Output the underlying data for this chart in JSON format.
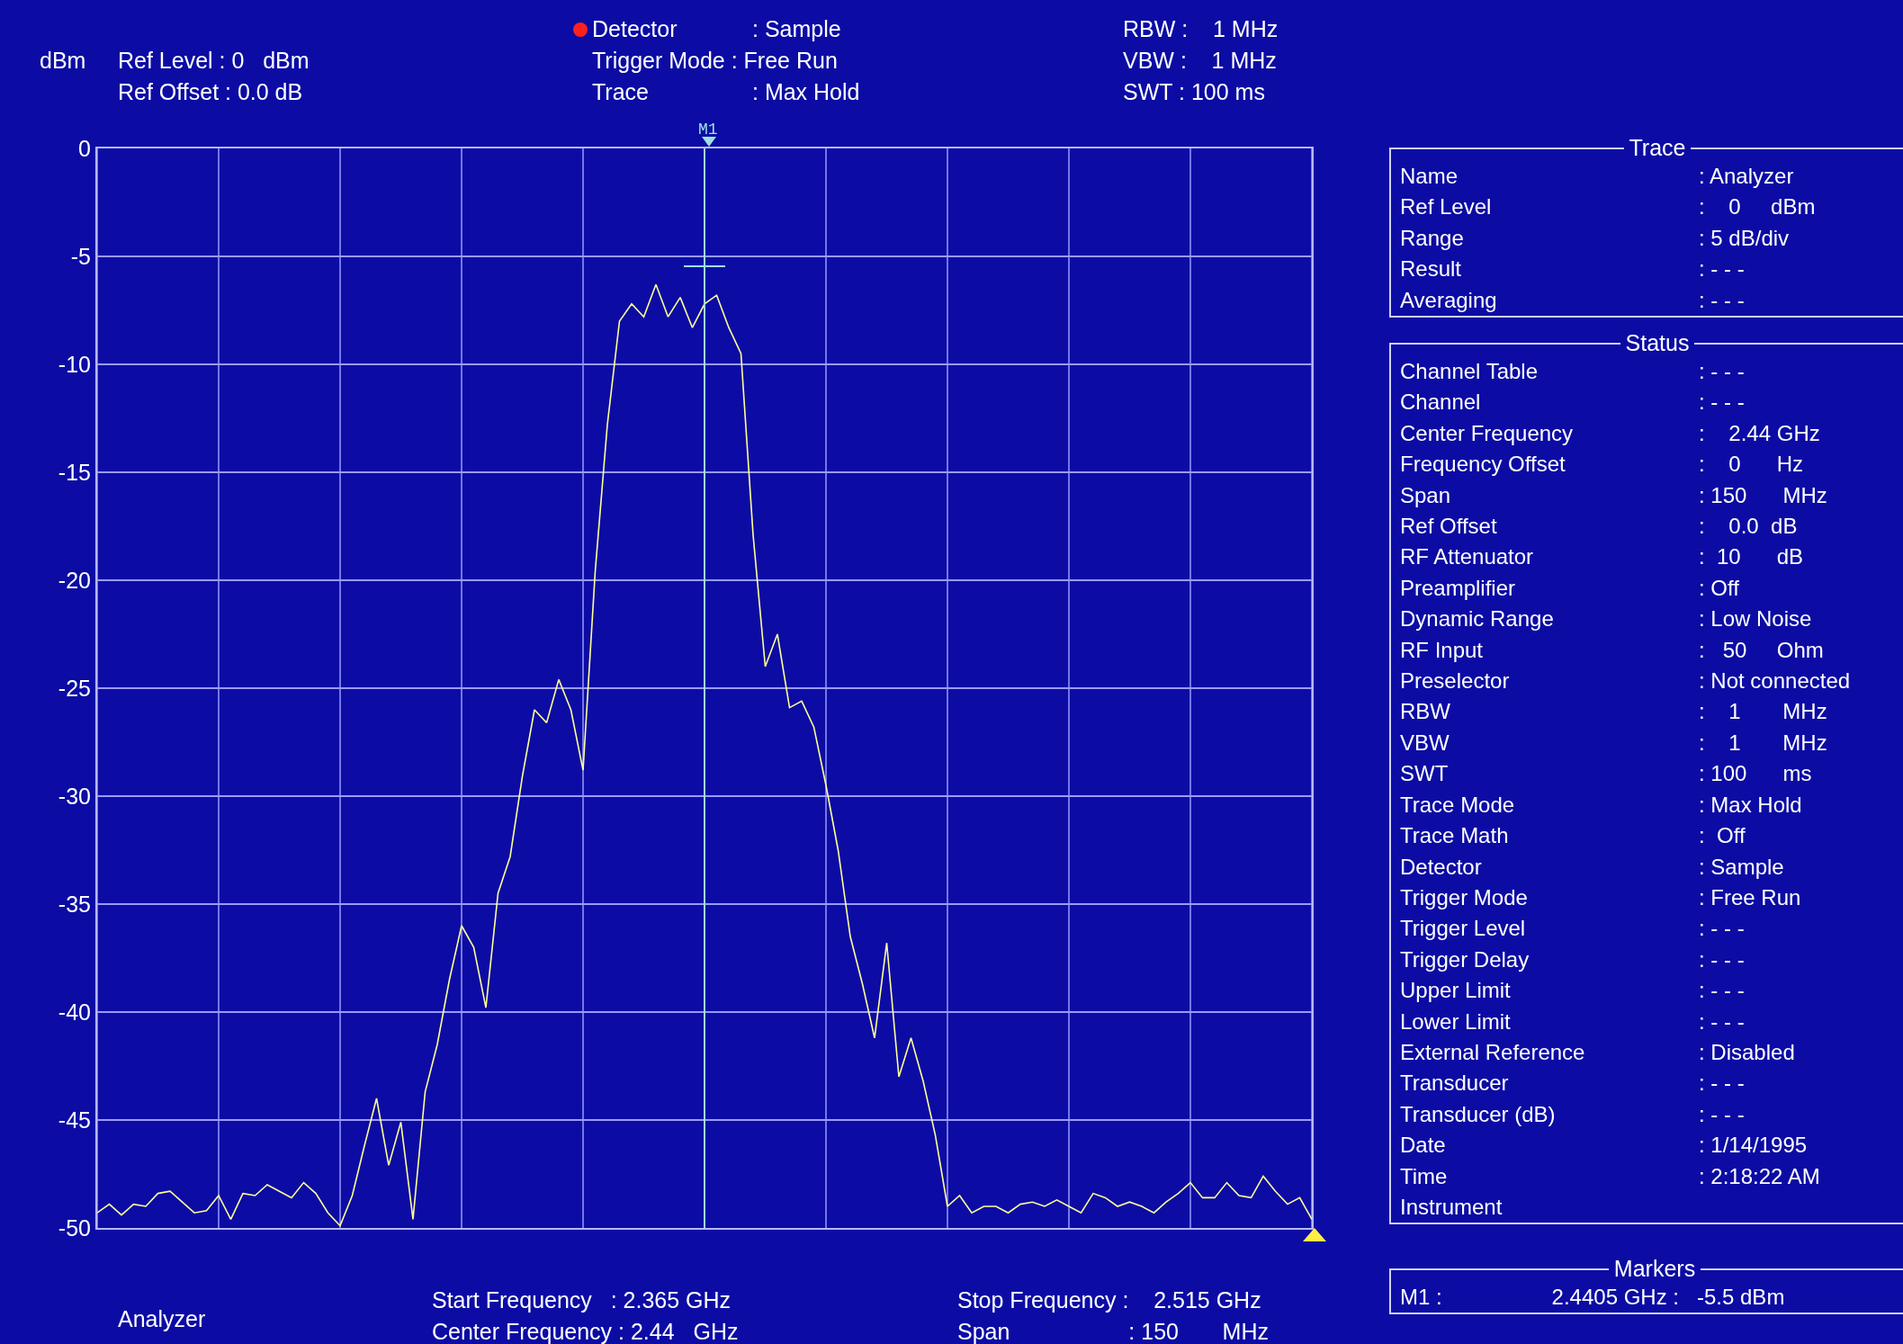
{
  "chart_data": [
    {
      "type": "line",
      "ylabel": "dBm",
      "tick_labels": "y",
      "grid": true,
      "marker": "none",
      "line_style": "solid",
      "categories": [
        null,
        null,
        null,
        null,
        null,
        null,
        null,
        null,
        null,
        null,
        null,
        null,
        null,
        null,
        null,
        null,
        null,
        null,
        null,
        null,
        null,
        null,
        null,
        null,
        null,
        null,
        null,
        null,
        null,
        null,
        null,
        null,
        null,
        null,
        null,
        null,
        null,
        null,
        null,
        null,
        null,
        null,
        null,
        null,
        null,
        null,
        null,
        null,
        null,
        null,
        null,
        null,
        null,
        null,
        null,
        null,
        null,
        null,
        null,
        null,
        null,
        null,
        null,
        null,
        null,
        null,
        null,
        null,
        null,
        null,
        null,
        null,
        null,
        null,
        null,
        null,
        null,
        null,
        null,
        null,
        null,
        null,
        null,
        null,
        null,
        null,
        null,
        null,
        null,
        null,
        null,
        null,
        null,
        null,
        null,
        null,
        null,
        null,
        null,
        null,
        null
      ],
      "ylim": [
        -50,
        0
      ],
      "yticks": [
        -50,
        -45,
        -40,
        -35,
        -30,
        -25,
        -20,
        -15,
        -10,
        -5,
        0
      ],
      "annotations": [
        "M1",
        "Ref Level : 0   dBm",
        "Ref Offset : 0.0 dB",
        "Detector",
        ": Sample",
        "Trigger Mode : Free Run",
        "Trace",
        ": Max Hold",
        "RBW :    1 MHz",
        "VBW :    1 MHz",
        "SWT : 100 ms",
        "Analyzer",
        "Start Frequency   : 2.365 GHz",
        "Center Frequency : 2.44   GHz",
        "Stop Frequency :    2.515 GHz",
        "Span                   : 150       MHz"
      ],
      "series": [
        {
          "type": "line",
          "color": "#ffff99",
          "values": [
            -49.3,
            -48.9,
            -49.4,
            -48.9,
            -49.0,
            -48.4,
            -48.3,
            -48.8,
            -49.3,
            -49.2,
            -48.5,
            -49.6,
            -48.4,
            -48.5,
            -48.0,
            -48.3,
            -48.6,
            -47.9,
            -48.4,
            -49.3,
            -49.9,
            -48.5,
            -46.2,
            -44.0,
            -47.1,
            -45.1,
            -49.6,
            -43.7,
            -41.5,
            -38.5,
            -36.0,
            -37.0,
            -39.8,
            -34.5,
            -32.8,
            -29.1,
            -26.0,
            -26.6,
            -24.6,
            -26.0,
            -28.8,
            -19.6,
            -12.8,
            -8.0,
            -7.2,
            -7.8,
            -6.3,
            -7.8,
            -6.9,
            -8.3,
            -7.2,
            -6.8,
            -8.3,
            -9.5,
            -17.9,
            -24.0,
            -22.5,
            -25.9,
            -25.6,
            -26.8,
            -29.5,
            -32.5,
            -36.5,
            -38.7,
            -41.2,
            -36.8,
            -43.0,
            -41.2,
            -43.2,
            -45.7,
            -49.0,
            -48.5,
            -49.3,
            -49.0,
            -49.0,
            -49.3,
            -48.9,
            -48.8,
            -49.0,
            -48.7,
            -49.0,
            -49.3,
            -48.4,
            -48.6,
            -49.0,
            -48.8,
            -49.0,
            -49.3,
            -48.8,
            -48.4,
            -47.9,
            -48.6,
            -48.6,
            -47.9,
            -48.5,
            -48.6,
            -47.6,
            -48.3,
            -48.9,
            -48.6,
            -49.6
          ]
        }
      ]
    },
    {
      "type": "other",
      "title": "Trace",
      "annotations": [
        "Name",
        ": Analyzer",
        "Ref Level",
        ":    0     dBm",
        "Range",
        ": 5 dB/div",
        "Result",
        ": - - -",
        "Averaging",
        ": - - -"
      ]
    },
    {
      "type": "other",
      "title": "Status",
      "annotations": [
        "Channel Table",
        ": - - -",
        "Channel",
        ": - - -",
        "Center Frequency",
        ":    2.44 GHz",
        "Frequency Offset",
        ":    0      Hz",
        "Span",
        ": 150      MHz",
        "Ref Offset",
        ":    0.0  dB",
        "RF Attenuator",
        ":  10      dB",
        "Preamplifier",
        ": Off",
        "Dynamic Range",
        ": Low Noise",
        "RF Input",
        ":   50     Ohm",
        "Preselector",
        ": Not connected",
        "RBW",
        ":    1       MHz",
        "VBW",
        ":    1       MHz",
        "SWT",
        ": 100      ms",
        "Trace Mode",
        ": Max Hold",
        "Trace Math",
        ":  Off",
        "Detector",
        ": Sample",
        "Trigger Mode",
        ": Free Run",
        "Trigger Level",
        ": - - -",
        "Trigger Delay",
        ": - - -",
        "Upper Limit",
        ": - - -",
        "Lower Limit",
        ": - - -",
        "External Reference",
        ": Disabled",
        "Transducer",
        ": - - -",
        "Transducer (dB)",
        ": - - -",
        "Date",
        ": 1/14/1995",
        "Time",
        ": 2:18:22 AM",
        "Instrument"
      ]
    },
    {
      "type": "other",
      "title": "Markers",
      "annotations": [
        "M1 :",
        "2.4405 GHz :",
        "-5.5 dBm"
      ]
    }
  ]
}
